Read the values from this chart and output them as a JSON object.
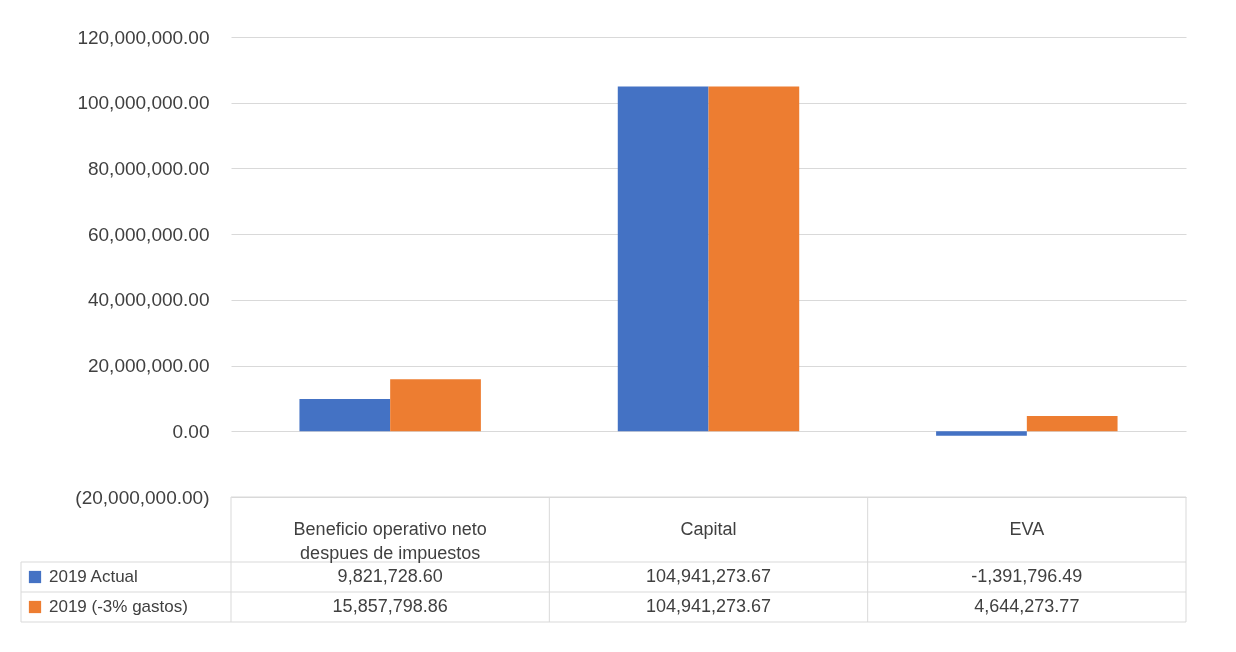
{
  "chart_data": {
    "type": "bar",
    "categories": [
      "Beneficio operativo neto despues de impuestos",
      "Capital",
      "EVA"
    ],
    "ylim": [
      -20000000,
      120000000
    ],
    "yticks": [
      {
        "value": -20000000,
        "label": "(20,000,000.00)"
      },
      {
        "value": 0,
        "label": "0.00"
      },
      {
        "value": 20000000,
        "label": "20,000,000.00"
      },
      {
        "value": 40000000,
        "label": "40,000,000.00"
      },
      {
        "value": 60000000,
        "label": "60,000,000.00"
      },
      {
        "value": 80000000,
        "label": "80,000,000.00"
      },
      {
        "value": 100000000,
        "label": "100,000,000.00"
      },
      {
        "value": 120000000,
        "label": "120,000,000.00"
      }
    ],
    "grid": "y",
    "legend": "bottom left",
    "series": [
      {
        "name": "2019 Actual",
        "color": "#4472c4",
        "values": [
          9821728.6,
          104941273.67,
          -1391796.49
        ],
        "value_labels": [
          "9,821,728.60",
          "104,941,273.67",
          "-1,391,796.49"
        ]
      },
      {
        "name": "2019 (-3% gastos)",
        "color": "#ed7d31",
        "values": [
          15857798.86,
          104941273.67,
          4644273.77
        ],
        "value_labels": [
          "15,857,798.86",
          "104,941,273.67",
          "4,644,273.77"
        ]
      }
    ]
  }
}
